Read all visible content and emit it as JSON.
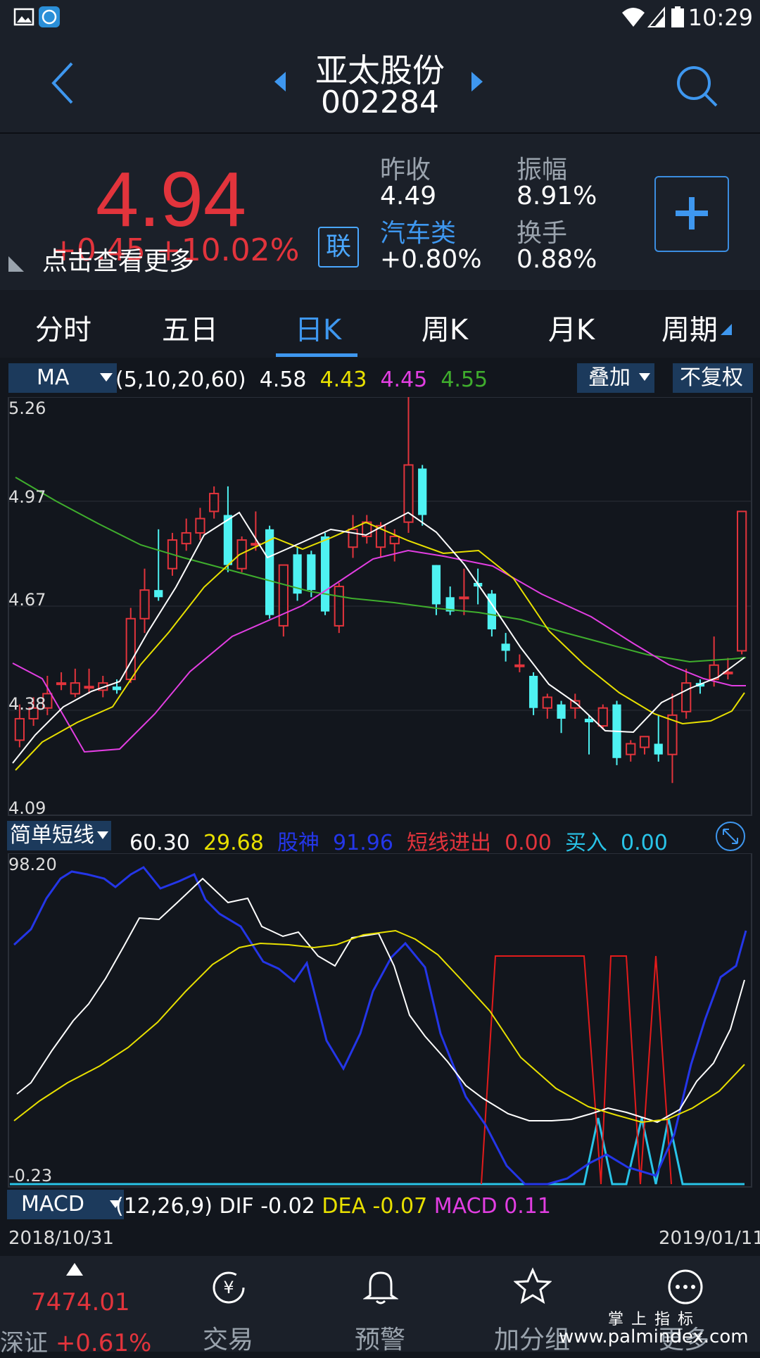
{
  "status_bar": {
    "time": "10:29"
  },
  "header": {
    "name": "亚太股份",
    "code": "002284"
  },
  "quote": {
    "price": "4.94",
    "change_line": "+0.45 +10.02%",
    "more_text": "点击查看更多",
    "lian_badge": "联",
    "prev_close_label": "昨收",
    "prev_close": "4.49",
    "amplitude_label": "振幅",
    "amplitude": "8.91%",
    "sector_label": "汽车类",
    "sector_change": "+0.80%",
    "turnover_label": "换手",
    "turnover": "0.88%"
  },
  "tabs": [
    {
      "label": "分时"
    },
    {
      "label": "五日"
    },
    {
      "label": "日K"
    },
    {
      "label": "周K"
    },
    {
      "label": "月K"
    },
    {
      "label": "周期"
    }
  ],
  "ma_bar": {
    "selector": "MA",
    "params": "(5,10,20,60)",
    "v1": "4.58",
    "v2": "4.43",
    "v3": "4.45",
    "v4": "4.55",
    "overlay_label": "叠加",
    "adjust_label": "不复权",
    "colors": {
      "ma5": "#ffffff",
      "ma10": "#e8e000",
      "ma20": "#e23ee2",
      "ma60": "#3fae2d"
    }
  },
  "kline_axis": {
    "top": "5.26",
    "l2": "4.97",
    "l3": "4.67",
    "l4": "4.38",
    "bottom": "4.09"
  },
  "sub_bar": {
    "selector": "简单短线",
    "v_white": "60.30",
    "v_yellow": "29.68",
    "gushen_label": "股神",
    "gushen_value": "91.96",
    "duanxian_label": "短线进出",
    "duanxian_value": "0.00",
    "buy_label": "买入",
    "buy_value": "0.00"
  },
  "sub_axis": {
    "top": "98.20",
    "bottom": "-0.23"
  },
  "macd_bar": {
    "selector": "MACD",
    "params": "(12,26,9)",
    "dif_label": "DIF",
    "dif": "-0.02",
    "dea_label": "DEA",
    "dea": "-0.07",
    "macd_label": "MACD",
    "macd": "0.11"
  },
  "dates": {
    "start": "2018/10/31",
    "end": "2019/01/11"
  },
  "bottom_nav": {
    "index_value": "7474.01",
    "index_name": "深证",
    "index_change": "+0.61%",
    "trade": "交易",
    "alert": "预警",
    "watchlist": "加分组",
    "more": "更多",
    "watermark_cn": "掌 上 指 标",
    "watermark_url": "www.palmindex.com"
  },
  "chart_data": {
    "type": "candlestick",
    "ylim": [
      4.09,
      5.26
    ],
    "up_color": "#e2343c",
    "down_color": "#4ef2f2",
    "candles": [
      [
        4.3,
        4.36,
        4.28,
        4.4
      ],
      [
        4.36,
        4.39,
        4.34,
        4.42
      ],
      [
        4.39,
        4.43,
        4.37,
        4.48
      ],
      [
        4.46,
        4.46,
        4.44,
        4.49
      ],
      [
        4.43,
        4.46,
        4.42,
        4.5
      ],
      [
        4.45,
        4.45,
        4.43,
        4.5
      ],
      [
        4.44,
        4.46,
        4.42,
        4.48
      ],
      [
        4.45,
        4.44,
        4.43,
        4.47
      ],
      [
        4.47,
        4.64,
        4.46,
        4.67
      ],
      [
        4.64,
        4.72,
        4.6,
        4.78
      ],
      [
        4.72,
        4.7,
        4.69,
        4.89
      ],
      [
        4.78,
        4.86,
        4.76,
        4.88
      ],
      [
        4.85,
        4.88,
        4.83,
        4.92
      ],
      [
        4.88,
        4.92,
        4.86,
        4.95
      ],
      [
        4.94,
        4.99,
        4.92,
        5.01
      ],
      [
        4.93,
        4.79,
        4.77,
        5.01
      ],
      [
        4.78,
        4.86,
        4.77,
        4.87
      ],
      [
        4.85,
        4.85,
        4.83,
        4.94
      ],
      [
        4.89,
        4.65,
        4.64,
        4.9
      ],
      [
        4.62,
        4.79,
        4.59,
        4.79
      ],
      [
        4.82,
        4.71,
        4.69,
        4.84
      ],
      [
        4.82,
        4.72,
        4.7,
        4.83
      ],
      [
        4.87,
        4.66,
        4.65,
        4.88
      ],
      [
        4.62,
        4.73,
        4.6,
        4.74
      ],
      [
        4.84,
        4.89,
        4.81,
        4.93
      ],
      [
        4.87,
        4.91,
        4.85,
        4.93
      ],
      [
        4.84,
        4.9,
        4.81,
        4.91
      ],
      [
        4.85,
        4.87,
        4.8,
        4.89
      ],
      [
        4.91,
        5.07,
        4.88,
        5.26
      ],
      [
        5.06,
        4.93,
        4.9,
        5.07
      ],
      [
        4.79,
        4.68,
        4.65,
        4.79
      ],
      [
        4.7,
        4.66,
        4.65,
        4.73
      ],
      [
        4.7,
        4.7,
        4.65,
        4.78
      ],
      [
        4.74,
        4.73,
        4.68,
        4.78
      ],
      [
        4.71,
        4.61,
        4.59,
        4.72
      ],
      [
        4.57,
        4.55,
        4.52,
        4.6
      ],
      [
        4.51,
        4.51,
        4.49,
        4.54
      ],
      [
        4.48,
        4.39,
        4.37,
        4.49
      ],
      [
        4.39,
        4.42,
        4.36,
        4.43
      ],
      [
        4.4,
        4.36,
        4.32,
        4.41
      ],
      [
        4.39,
        4.41,
        4.36,
        4.43
      ],
      [
        4.36,
        4.35,
        4.26,
        4.37
      ],
      [
        4.34,
        4.39,
        4.33,
        4.4
      ],
      [
        4.4,
        4.25,
        4.23,
        4.41
      ],
      [
        4.26,
        4.29,
        4.24,
        4.3
      ],
      [
        4.28,
        4.31,
        4.26,
        4.31
      ],
      [
        4.29,
        4.26,
        4.24,
        4.37
      ],
      [
        4.26,
        4.37,
        4.18,
        4.43
      ],
      [
        4.38,
        4.46,
        4.36,
        4.5
      ],
      [
        4.46,
        4.45,
        4.43,
        4.47
      ],
      [
        4.47,
        4.51,
        4.45,
        4.59
      ],
      [
        4.49,
        4.49,
        4.47,
        4.53
      ],
      [
        4.55,
        4.94,
        4.54,
        4.94
      ]
    ]
  }
}
